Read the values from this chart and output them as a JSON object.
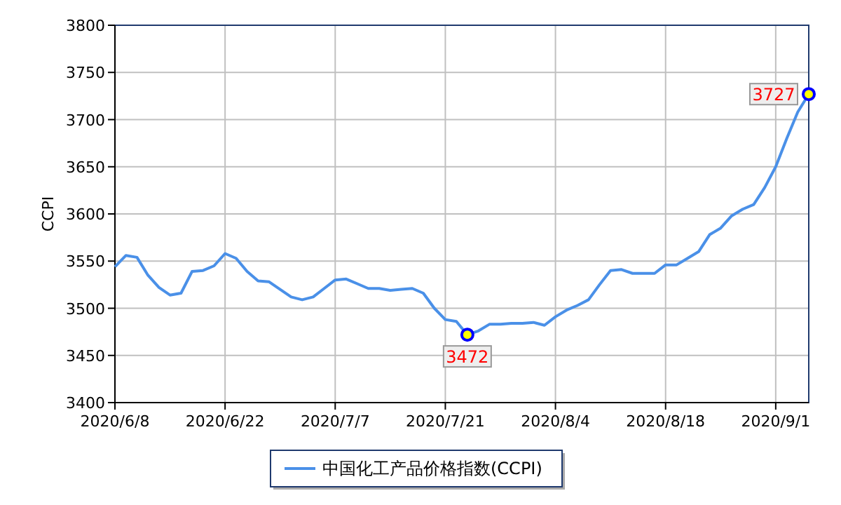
{
  "chart_data": {
    "type": "line",
    "ylabel": "CCPI",
    "categories": [
      "2020/6/8",
      null,
      null,
      null,
      null,
      null,
      null,
      null,
      null,
      null,
      "2020/6/22",
      null,
      null,
      null,
      null,
      null,
      null,
      null,
      null,
      null,
      "2020/7/7",
      null,
      null,
      null,
      null,
      null,
      null,
      null,
      null,
      null,
      "2020/7/21",
      null,
      null,
      null,
      null,
      null,
      null,
      null,
      null,
      null,
      "2020/8/4",
      null,
      null,
      null,
      null,
      null,
      null,
      null,
      null,
      null,
      "2020/8/18",
      null,
      null,
      null,
      null,
      null,
      null,
      null,
      null,
      null,
      "2020/9/1",
      null,
      null,
      null
    ],
    "series": [
      {
        "name": "中国化工产品价格指数(CCPI)",
        "color": "#4a90e8",
        "values": [
          3544,
          3556,
          3554,
          3535,
          3522,
          3514,
          3516,
          3539,
          3540,
          3545,
          3558,
          3553,
          3539,
          3529,
          3528,
          3520,
          3512,
          3509,
          3512,
          3521,
          3530,
          3531,
          3526,
          3521,
          3521,
          3519,
          3520,
          3521,
          3516,
          3500,
          3488,
          3486,
          3472,
          3476,
          3483,
          3483,
          3484,
          3484,
          3485,
          3482,
          3491,
          3498,
          3503,
          3509,
          3525,
          3540,
          3541,
          3537,
          3537,
          3537,
          3546,
          3546,
          3553,
          3560,
          3578,
          3585,
          3598,
          3605,
          3610,
          3628,
          3650,
          3680,
          3708,
          3727
        ],
        "value_labels": [
          null,
          null,
          null,
          null,
          null,
          null,
          null,
          null,
          null,
          null,
          null,
          null,
          null,
          null,
          null,
          null,
          null,
          null,
          null,
          null,
          null,
          null,
          null,
          null,
          null,
          null,
          null,
          null,
          null,
          null,
          null,
          null,
          "3472",
          null,
          null,
          null,
          null,
          null,
          null,
          null,
          null,
          null,
          null,
          null,
          null,
          null,
          null,
          null,
          null,
          null,
          null,
          null,
          null,
          null,
          null,
          null,
          null,
          null,
          null,
          null,
          null,
          null,
          null,
          "3727"
        ]
      }
    ],
    "ylim": [
      3400,
      3800
    ],
    "yticks": [
      3400,
      3450,
      3500,
      3550,
      3600,
      3650,
      3700,
      3750,
      3800
    ],
    "grid": true,
    "legend": "bottom",
    "marker": "none",
    "line_style": "solid"
  }
}
